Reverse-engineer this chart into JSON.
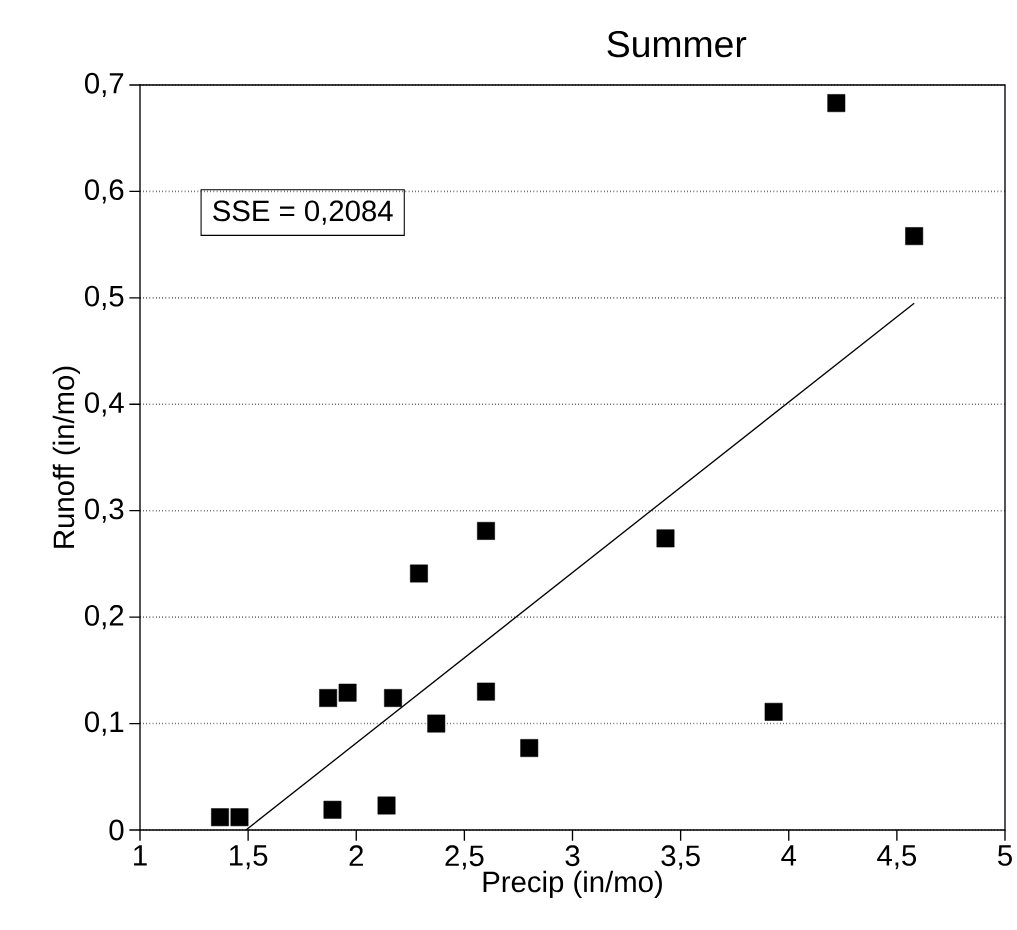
{
  "chart_data": {
    "type": "scatter",
    "title": "Summer",
    "xlabel": "Precip (in/mo)",
    "ylabel": "Runoff (in/mo)",
    "annotations": [
      "SSE = 0,2084"
    ],
    "series": [
      {
        "color": "#000000",
        "marker": "square",
        "x": [
          1.37,
          1.46,
          1.89,
          1.87,
          1.96,
          2.14,
          2.17,
          2.29,
          2.37,
          2.6,
          2.6,
          2.8,
          3.43,
          3.93,
          4.22,
          4.58
        ],
        "values": [
          0.012,
          0.012,
          0.019,
          0.124,
          0.129,
          0.023,
          0.124,
          0.241,
          0.1,
          0.281,
          0.13,
          0.077,
          0.274,
          0.111,
          0.683,
          0.558
        ]
      },
      {
        "type": "line",
        "color": "#000000",
        "marker": "none",
        "line_style": "solid",
        "x": [
          1.49,
          4.58
        ],
        "values": [
          0,
          0.495
        ]
      }
    ],
    "xlim": [
      1,
      5
    ],
    "ylim": [
      0,
      0.7
    ],
    "xticks": [
      1,
      {
        "value": 1.5,
        "label": "1,5"
      },
      2,
      {
        "value": 2.5,
        "label": "2,5"
      },
      3,
      {
        "value": 3.5,
        "label": "3,5"
      },
      4,
      {
        "value": 4.5,
        "label": "4,5"
      },
      5
    ],
    "yticks": [
      0,
      {
        "value": 0.1,
        "label": "0,1"
      },
      {
        "value": 0.2,
        "label": "0,2"
      },
      {
        "value": 0.3,
        "label": "0,3"
      },
      {
        "value": 0.4,
        "label": "0,4"
      },
      {
        "value": 0.5,
        "label": "0,5"
      },
      {
        "value": 0.6,
        "label": "0,6"
      },
      {
        "value": 0.7,
        "label": "0,7"
      }
    ],
    "grid": "y"
  }
}
